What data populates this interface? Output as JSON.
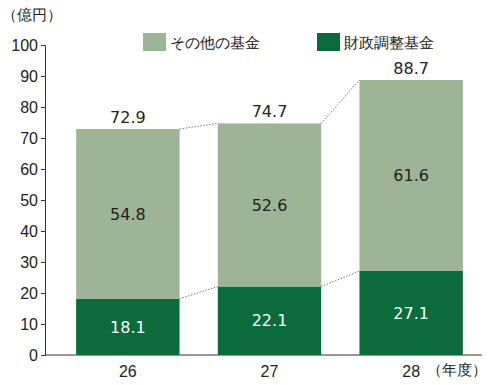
{
  "chart_data": {
    "type": "bar",
    "stacked": true,
    "data_labels": true,
    "legend": "top-right",
    "y_label": "（億円）",
    "x_label": "（年度）",
    "categories": [
      "26",
      "27",
      "28"
    ],
    "series": [
      {
        "name": "財政調整基金",
        "color": "#0b6b3a",
        "values": [
          18.1,
          22.1,
          27.1
        ]
      },
      {
        "name": "その他の基金",
        "color": "#9db596",
        "values": [
          54.8,
          52.6,
          61.6
        ]
      }
    ],
    "totals": [
      72.9,
      74.7,
      88.7
    ],
    "ylim": [
      0,
      100
    ],
    "yticks": [
      0,
      10,
      20,
      30,
      40,
      50,
      60,
      70,
      80,
      90,
      100
    ]
  }
}
